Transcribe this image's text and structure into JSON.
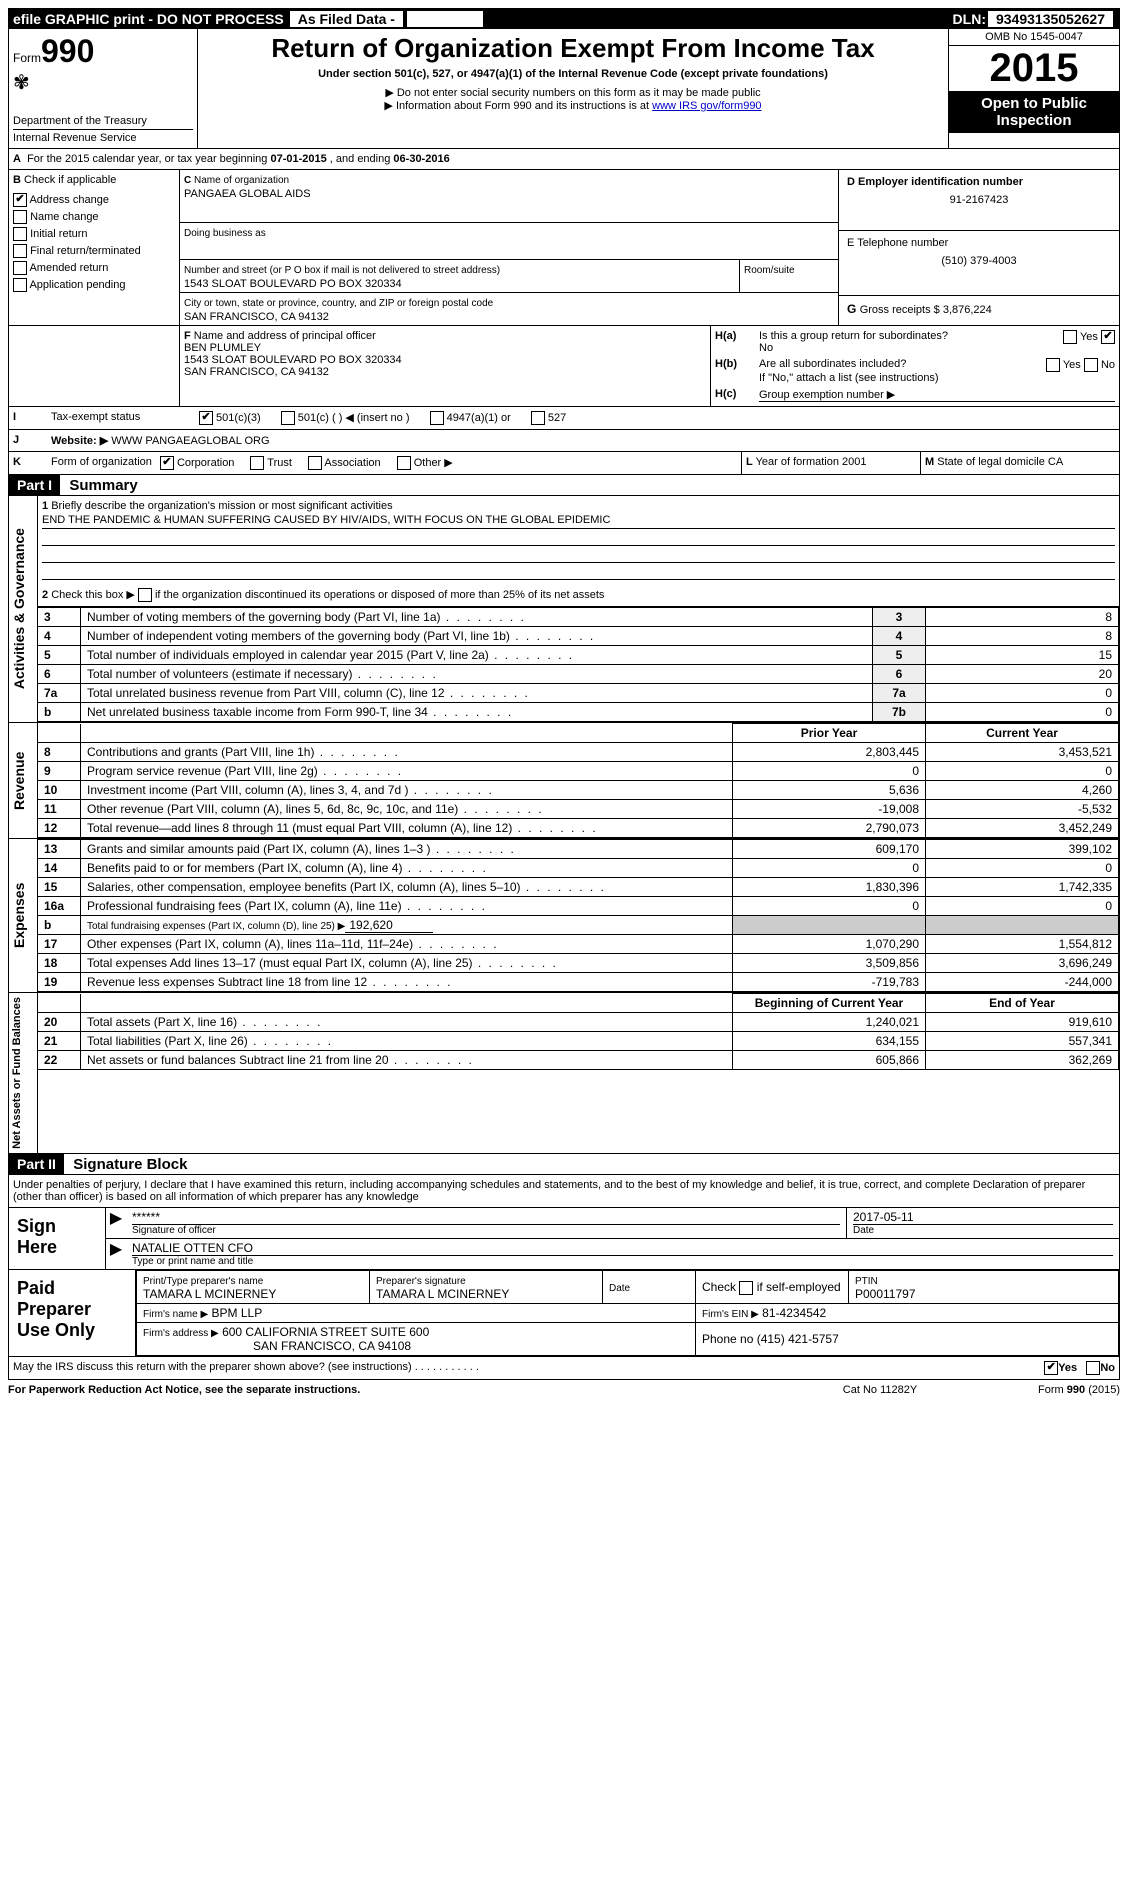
{
  "header_strip": {
    "left": "efile GRAPHIC print - DO NOT PROCESS",
    "mid": "As Filed Data -",
    "dln_label": "DLN:",
    "dln": "93493135052627"
  },
  "form_block": {
    "form_label": "Form",
    "form_number": "990",
    "dept": "Department of the Treasury",
    "irs": "Internal Revenue Service"
  },
  "title_block": {
    "title": "Return of Organization Exempt From Income Tax",
    "subtitle": "Under section 501(c), 527, or 4947(a)(1) of the Internal Revenue Code (except private foundations)",
    "note1": "▶ Do not enter social security numbers on this form as it may be made public",
    "note2_pre": "▶ Information about Form 990 and its instructions is at ",
    "note2_link": "www IRS gov/form990"
  },
  "right_block": {
    "omb": "OMB No 1545-0047",
    "year": "2015",
    "inspect1": "Open to Public",
    "inspect2": "Inspection"
  },
  "line_a": {
    "label": "A",
    "text_pre": "For the 2015 calendar year, or tax year beginning ",
    "begin": "07-01-2015",
    "mid": ", and ending ",
    "end": "06-30-2016"
  },
  "section_b": {
    "label": "B",
    "heading": "Check if applicable",
    "items": [
      {
        "checked": true,
        "label": "Address change"
      },
      {
        "checked": false,
        "label": "Name change"
      },
      {
        "checked": false,
        "label": "Initial return"
      },
      {
        "checked": false,
        "label": "Final return/terminated"
      },
      {
        "checked": false,
        "label": "Amended return"
      },
      {
        "checked": false,
        "label": "Application pending"
      }
    ]
  },
  "section_c": {
    "c_label": "C",
    "name_label": "Name of organization",
    "name": "PANGAEA GLOBAL AIDS",
    "dba_label": "Doing business as",
    "dba": "",
    "street_label": "Number and street (or P O  box if mail is not delivered to street address)",
    "room_label": "Room/suite",
    "street": "1543 SLOAT BOULEVARD PO BOX 320334",
    "city_label": "City or town, state or province, country, and ZIP or foreign postal code",
    "city": "SAN FRANCISCO, CA  94132"
  },
  "section_d": {
    "label": "D Employer identification number",
    "value": "91-2167423"
  },
  "section_e": {
    "label": "E Telephone number",
    "value": "(510) 379-4003"
  },
  "section_g": {
    "label": "G",
    "text": "Gross receipts $ 3,876,224"
  },
  "section_f": {
    "label": "F",
    "heading": "Name and address of principal officer",
    "name": "BEN PLUMLEY",
    "street": "1543 SLOAT BOULEVARD PO BOX 320334",
    "city": "SAN FRANCISCO, CA  94132"
  },
  "section_h": {
    "ha_label": "H(a)",
    "ha_text": "Is this a group return for subordinates?",
    "ha_answer": "No",
    "ha_yes": "Yes",
    "hb_label": "H(b)",
    "hb_text": "Are all subordinates included?",
    "hb_yes": "Yes",
    "hb_no": "No",
    "hb_note": "If \"No,\" attach a list  (see instructions)",
    "hc_label": "H(c)",
    "hc_text": "Group exemption number ▶"
  },
  "section_i": {
    "label": "I",
    "heading": "Tax-exempt status",
    "opts": [
      "501(c)(3)",
      "501(c) (  ) ◀ (insert no )",
      "4947(a)(1) or",
      "527"
    ]
  },
  "section_j": {
    "label": "J",
    "heading": "Website: ▶",
    "value": "WWW PANGAEAGLOBAL ORG"
  },
  "section_k": {
    "label": "K",
    "heading": "Form of organization",
    "opts": [
      "Corporation",
      "Trust",
      "Association",
      "Other ▶"
    ]
  },
  "section_l": {
    "label": "L",
    "text": "Year of formation  2001"
  },
  "section_m": {
    "label": "M",
    "text": "State of legal domicile  CA"
  },
  "part1": {
    "header": "Part I",
    "title": "Summary",
    "q1_label": "1",
    "q1_text": "Briefly describe the organization's mission or most significant activities",
    "q1_answer": "END THE PANDEMIC & HUMAN SUFFERING CAUSED BY HIV/AIDS, WITH FOCUS ON THE GLOBAL EPIDEMIC",
    "q2_label": "2",
    "q2_text": "Check this box ▶",
    "q2_rest": "if the organization discontinued its operations or disposed of more than 25% of its net assets",
    "side_act": "Activities & Governance",
    "side_rev": "Revenue",
    "side_exp": "Expenses",
    "side_net": "Net Assets or Fund Balances",
    "lines_3_7": [
      {
        "num": "3",
        "text": "Number of voting members of the governing body (Part VI, line 1a)",
        "box": "3",
        "val": "8"
      },
      {
        "num": "4",
        "text": "Number of independent voting members of the governing body (Part VI, line 1b)",
        "box": "4",
        "val": "8"
      },
      {
        "num": "5",
        "text": "Total number of individuals employed in calendar year 2015 (Part V, line 2a)",
        "box": "5",
        "val": "15"
      },
      {
        "num": "6",
        "text": "Total number of volunteers (estimate if necessary)",
        "box": "6",
        "val": "20"
      },
      {
        "num": "7a",
        "text": "Total unrelated business revenue from Part VIII, column (C), line 12",
        "box": "7a",
        "val": "0"
      },
      {
        "num": "b",
        "text": "Net unrelated business taxable income from Form 990-T, line 34",
        "box": "7b",
        "val": "0"
      }
    ],
    "col_headers": {
      "prior": "Prior Year",
      "current": "Current Year",
      "begin": "Beginning of Current Year",
      "end": "End of Year"
    },
    "revenue": [
      {
        "num": "8",
        "text": "Contributions and grants (Part VIII, line 1h)",
        "p": "2,803,445",
        "c": "3,453,521"
      },
      {
        "num": "9",
        "text": "Program service revenue (Part VIII, line 2g)",
        "p": "0",
        "c": "0"
      },
      {
        "num": "10",
        "text": "Investment income (Part VIII, column (A), lines 3, 4, and 7d )",
        "p": "5,636",
        "c": "4,260"
      },
      {
        "num": "11",
        "text": "Other revenue (Part VIII, column (A), lines 5, 6d, 8c, 9c, 10c, and 11e)",
        "p": "-19,008",
        "c": "-5,532"
      },
      {
        "num": "12",
        "text": "Total revenue—add lines 8 through 11 (must equal Part VIII, column (A), line 12)",
        "p": "2,790,073",
        "c": "3,452,249"
      }
    ],
    "expenses": [
      {
        "num": "13",
        "text": "Grants and similar amounts paid (Part IX, column (A), lines 1–3 )",
        "p": "609,170",
        "c": "399,102"
      },
      {
        "num": "14",
        "text": "Benefits paid to or for members (Part IX, column (A), line 4)",
        "p": "0",
        "c": "0"
      },
      {
        "num": "15",
        "text": "Salaries, other compensation, employee benefits (Part IX, column (A), lines 5–10)",
        "p": "1,830,396",
        "c": "1,742,335"
      },
      {
        "num": "16a",
        "text": "Professional fundraising fees (Part IX, column (A), line 11e)",
        "p": "0",
        "c": "0"
      },
      {
        "num": "b",
        "text": "Total fundraising expenses (Part IX, column (D), line 25) ▶",
        "fund": "192,620",
        "p": "",
        "c": ""
      },
      {
        "num": "17",
        "text": "Other expenses (Part IX, column (A), lines 11a–11d, 11f–24e)",
        "p": "1,070,290",
        "c": "1,554,812"
      },
      {
        "num": "18",
        "text": "Total expenses  Add lines 13–17 (must equal Part IX, column (A), line 25)",
        "p": "3,509,856",
        "c": "3,696,249"
      },
      {
        "num": "19",
        "text": "Revenue less expenses  Subtract line 18 from line 12",
        "p": "-719,783",
        "c": "-244,000"
      }
    ],
    "netassets": [
      {
        "num": "20",
        "text": "Total assets (Part X, line 16)",
        "p": "1,240,021",
        "c": "919,610"
      },
      {
        "num": "21",
        "text": "Total liabilities (Part X, line 26)",
        "p": "634,155",
        "c": "557,341"
      },
      {
        "num": "22",
        "text": "Net assets or fund balances  Subtract line 21 from line 20",
        "p": "605,866",
        "c": "362,269"
      }
    ]
  },
  "part2": {
    "header": "Part II",
    "title": "Signature Block",
    "decl": "Under penalties of perjury, I declare that I have examined this return, including accompanying schedules and statements, and to the best of my knowledge and belief, it is true, correct, and complete  Declaration of preparer (other than officer) is based on all information of which preparer has any knowledge",
    "sign_here": "Sign Here",
    "sig_stars": "******",
    "sig_officer_label": "Signature of officer",
    "sig_date": "2017-05-11",
    "date_label": "Date",
    "officer_name": "NATALIE OTTEN CFO",
    "officer_name_label": "Type or print name and title",
    "paid": "Paid Preparer Use Only",
    "prep_name_label": "Print/Type preparer's name",
    "prep_name": "TAMARA L MCINERNEY",
    "prep_sig_label": "Preparer's signature",
    "prep_sig": "TAMARA L MCINERNEY",
    "prep_date_label": "Date",
    "self_emp": "Check         if self-employed",
    "ptin_label": "PTIN",
    "ptin": "P00011797",
    "firm_name_label": "Firm's name    ▶",
    "firm_name": "BPM LLP",
    "firm_ein_label": "Firm's EIN ▶",
    "firm_ein": "81-4234542",
    "firm_addr_label": "Firm's address ▶",
    "firm_addr1": "600 CALIFORNIA STREET SUITE 600",
    "firm_addr2": "SAN FRANCISCO, CA  94108",
    "firm_phone_label": "Phone no  (415) 421-5757",
    "discuss": "May the IRS discuss this return with the preparer shown above? (see instructions)",
    "discuss_yes": "Yes",
    "discuss_no": "No"
  },
  "footer": {
    "left": "For Paperwork Reduction Act Notice, see the separate instructions.",
    "mid": "Cat No 11282Y",
    "right": "Form 990 (2015)"
  }
}
